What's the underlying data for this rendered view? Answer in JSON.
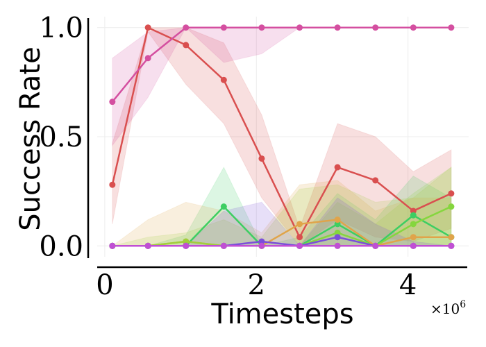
{
  "chart_data": {
    "type": "line",
    "xlabel": "Timesteps",
    "ylabel": "Success Rate",
    "x_multiplier": "×10",
    "x_multiplier_exp": "6",
    "xlim": [
      -0.1,
      4.8
    ],
    "ylim": [
      -0.05,
      1.05
    ],
    "xticks": [
      0,
      2,
      4
    ],
    "xtick_labels": [
      "0",
      "2",
      "4"
    ],
    "yticks": [
      0.0,
      0.5,
      1.0
    ],
    "ytick_labels": [
      "0.0",
      "0.5",
      "1.0"
    ],
    "grid": true,
    "x": [
      0.1,
      0.57,
      1.07,
      1.57,
      2.07,
      2.57,
      3.07,
      3.57,
      4.07,
      4.57
    ],
    "series": [
      {
        "color": "#d94f4f",
        "values": [
          0.28,
          1.0,
          0.92,
          0.76,
          0.4,
          0.04,
          0.36,
          0.3,
          0.16,
          0.24
        ],
        "lower": [
          0.1,
          0.98,
          0.74,
          0.56,
          0.22,
          0.0,
          0.12,
          0.04,
          0.02,
          0.08
        ],
        "upper": [
          0.47,
          1.0,
          1.0,
          0.93,
          0.6,
          0.08,
          0.56,
          0.5,
          0.34,
          0.44
        ]
      },
      {
        "color": "#d44fa0",
        "values": [
          0.66,
          0.86,
          1.0,
          1.0,
          1.0,
          1.0,
          1.0,
          1.0,
          1.0,
          1.0
        ],
        "lower": [
          0.46,
          0.68,
          1.0,
          0.84,
          0.88,
          1.0,
          1.0,
          1.0,
          1.0,
          1.0
        ],
        "upper": [
          0.86,
          0.98,
          1.0,
          1.0,
          1.0,
          1.0,
          1.0,
          1.0,
          1.0,
          1.0
        ]
      },
      {
        "color": "#3dce62",
        "values": [
          0.0,
          0.0,
          0.0,
          0.18,
          0.0,
          0.0,
          0.1,
          0.0,
          0.14,
          0.04
        ],
        "lower": [
          0.0,
          0.0,
          0.0,
          0.0,
          0.0,
          0.0,
          0.0,
          0.0,
          0.0,
          0.0
        ],
        "upper": [
          0.0,
          0.0,
          0.05,
          0.36,
          0.0,
          0.04,
          0.24,
          0.12,
          0.32,
          0.22
        ]
      },
      {
        "color": "#85d63e",
        "values": [
          0.0,
          0.0,
          0.0,
          0.0,
          0.0,
          0.0,
          0.06,
          0.0,
          0.1,
          0.18
        ],
        "lower": [
          0.0,
          0.0,
          0.0,
          0.0,
          0.0,
          0.0,
          0.0,
          0.0,
          0.0,
          0.0
        ],
        "upper": [
          0.0,
          0.0,
          0.0,
          0.0,
          0.0,
          0.0,
          0.2,
          0.1,
          0.24,
          0.36
        ]
      },
      {
        "color": "#e0a44a",
        "values": [
          0.0,
          0.0,
          0.02,
          0.0,
          0.0,
          0.1,
          0.12,
          0.0,
          0.04,
          0.04
        ],
        "lower": [
          0.0,
          0.0,
          0.0,
          0.0,
          0.0,
          0.0,
          0.0,
          0.0,
          0.0,
          0.0
        ],
        "upper": [
          0.0,
          0.12,
          0.2,
          0.16,
          0.06,
          0.28,
          0.3,
          0.16,
          0.22,
          0.22
        ]
      },
      {
        "color": "#a0cf3c",
        "values": [
          0.0,
          0.0,
          0.02,
          0.0,
          0.0,
          0.0,
          0.0,
          0.0,
          0.0,
          0.0
        ],
        "lower": [
          0.0,
          0.0,
          0.0,
          0.0,
          0.0,
          0.0,
          0.0,
          0.0,
          0.0,
          0.0
        ],
        "upper": [
          0.0,
          0.04,
          0.06,
          0.12,
          0.04,
          0.26,
          0.28,
          0.2,
          0.22,
          0.36
        ]
      },
      {
        "color": "#7b4fd9",
        "values": [
          0.0,
          0.0,
          0.0,
          0.0,
          0.02,
          0.0,
          0.04,
          0.0,
          0.0,
          0.0
        ],
        "lower": [
          0.0,
          0.0,
          0.0,
          0.0,
          0.0,
          0.0,
          0.0,
          0.0,
          0.0,
          0.0
        ],
        "upper": [
          0.0,
          0.0,
          0.0,
          0.16,
          0.2,
          0.0,
          0.22,
          0.1,
          0.02,
          0.0
        ]
      },
      {
        "color": "#c04fd4",
        "values": [
          0.0,
          0.0,
          0.0,
          0.0,
          0.0,
          0.0,
          0.0,
          0.0,
          0.0,
          0.0
        ],
        "lower": [
          0.0,
          0.0,
          0.0,
          0.0,
          0.0,
          0.0,
          0.0,
          0.0,
          0.0,
          0.0
        ],
        "upper": [
          0.0,
          0.0,
          0.0,
          0.0,
          0.0,
          0.0,
          0.0,
          0.0,
          0.0,
          0.0
        ]
      }
    ]
  }
}
